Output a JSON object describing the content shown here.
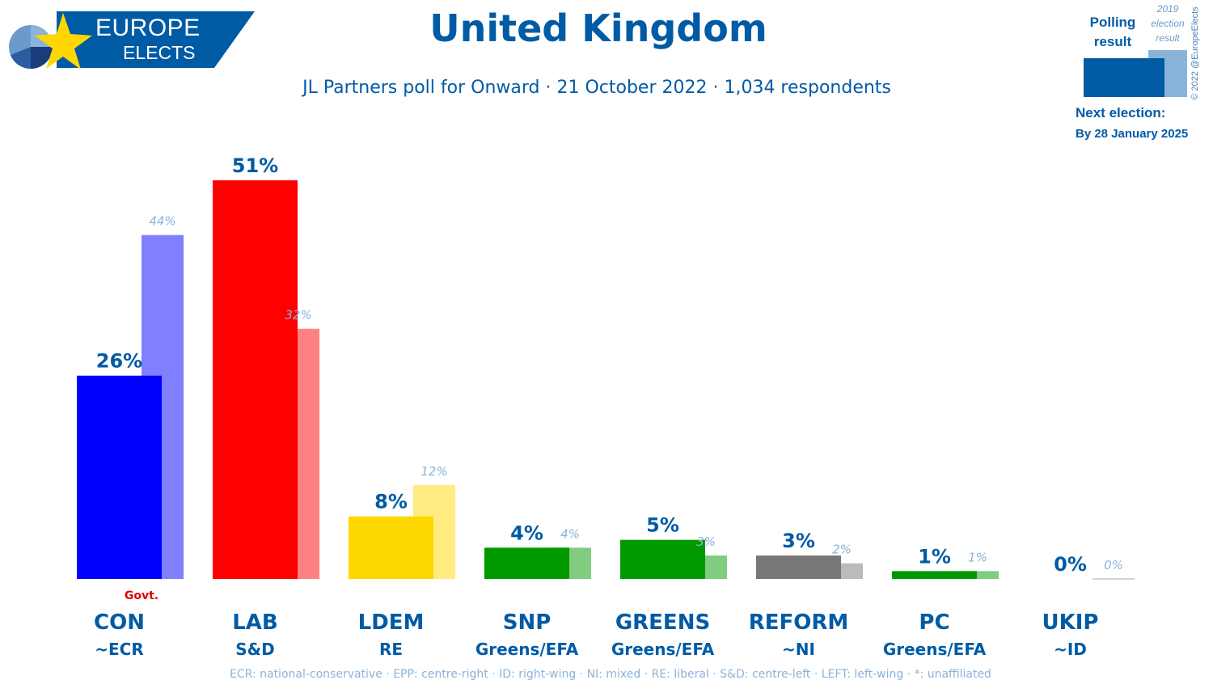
{
  "header": {
    "logo_line1": "EUROPE",
    "logo_line2": "ELECTS",
    "title": "United Kingdom",
    "subtitle": "JL Partners poll for Onward · 21 October 2022 · 1,034 respondents"
  },
  "legend": {
    "polling_label": "Polling result",
    "election_label": "2019 election result",
    "copyright": "© 2022 @EuropeElects",
    "next_election_label": "Next election:",
    "next_election_date": "By 28 January 2025"
  },
  "footer": "ECR: national-conservative · EPP: centre-right · ID: right-wing · NI: mixed · RE: liberal · S&D: centre-left · LEFT: left-wing · *: unaffiliated",
  "colors": {
    "text_blue": "#005ba5",
    "prev_label": "#8ab3d9",
    "govt": "#e00000",
    "axis": "#b8c8d8"
  },
  "chart_data": {
    "type": "bar",
    "title": "United Kingdom",
    "ylim": [
      0,
      51
    ],
    "govt_label": "Govt.",
    "categories": [
      "CON",
      "LAB",
      "LDEM",
      "SNP",
      "GREENS",
      "REFORM",
      "PC",
      "UKIP"
    ],
    "groups": [
      "~ECR",
      "S&D",
      "RE",
      "Greens/EFA",
      "Greens/EFA",
      "~NI",
      "Greens/EFA",
      "~ID"
    ],
    "series": [
      {
        "name": "Polling result",
        "values": [
          26,
          51,
          8,
          4,
          5,
          3,
          1,
          0
        ],
        "labels": [
          "26%",
          "51%",
          "8%",
          "4%",
          "5%",
          "3%",
          "1%",
          "0%"
        ]
      },
      {
        "name": "2019 election result",
        "values": [
          44,
          32,
          12,
          4,
          3,
          2,
          1,
          0
        ],
        "labels": [
          "44%",
          "32%",
          "12%",
          "4%",
          "3%",
          "2%",
          "1%",
          "0%"
        ]
      }
    ],
    "bar_colors": [
      "#0000ff",
      "#ff0000",
      "#ffd700",
      "#009900",
      "#009900",
      "#777777",
      "#009900",
      "#6a1a8a"
    ],
    "prev_colors": [
      "#8080ff",
      "#ff8080",
      "#ffeb80",
      "#80cc80",
      "#80cc80",
      "#bbbbbb",
      "#80cc80",
      "#b48cc4"
    ],
    "govt": [
      true,
      false,
      false,
      false,
      false,
      false,
      false,
      false
    ]
  }
}
